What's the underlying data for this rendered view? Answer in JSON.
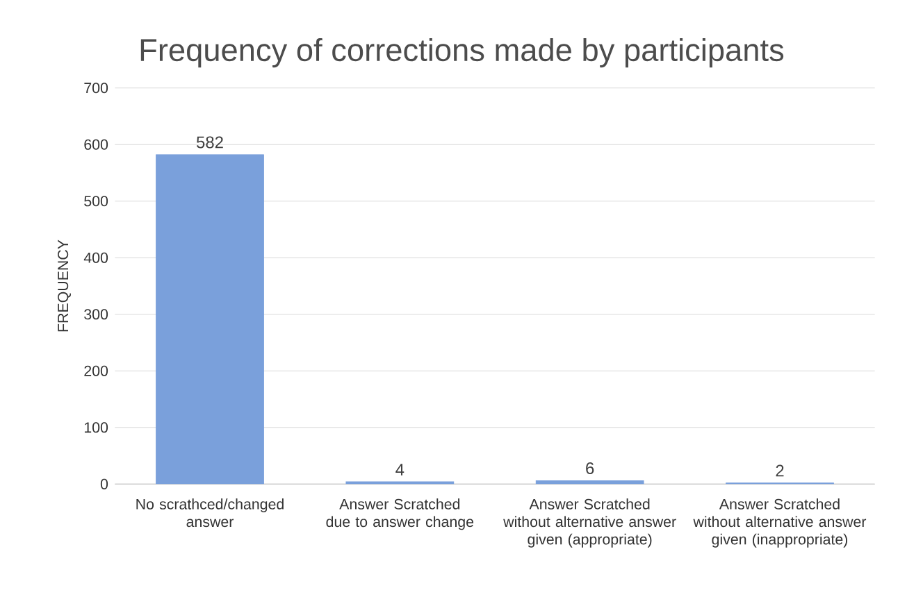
{
  "chart_data": {
    "type": "bar",
    "title": "Frequency of corrections made by participants",
    "ylabel": "FREQUENCY",
    "categories": [
      "No scrathced/changed answer",
      "Answer Scratched  due to answer change",
      "Answer Scratched without alternative answer given (appropriate)",
      "Answer Scratched without alternative answer given (inappropriate)"
    ],
    "values": [
      582,
      4,
      6,
      2
    ],
    "color": "#7aa0db",
    "data_labels": true,
    "ylim": [
      0,
      700
    ],
    "yticks": [
      0,
      100,
      200,
      300,
      400,
      500,
      600,
      700
    ],
    "grid": "y"
  }
}
